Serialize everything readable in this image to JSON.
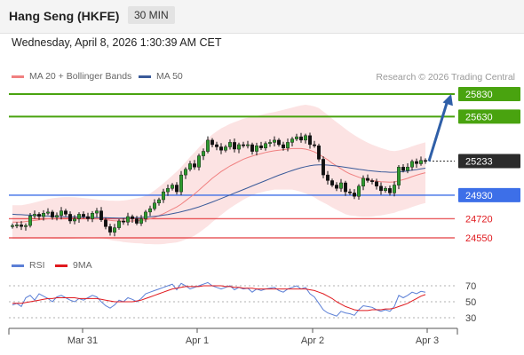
{
  "header": {
    "title": "Hang Seng (HKFE)",
    "timeframe": "30 MIN"
  },
  "datetime": "Wednesday, April 8, 2026 1:30:39 AM CET",
  "legend_main": [
    {
      "label": "MA 20 + Bollinger Bands",
      "color": "#f08080"
    },
    {
      "label": "MA 50",
      "color": "#3a5a99"
    }
  ],
  "credit": "Research © 2026 Trading Central",
  "legend_rsi": [
    {
      "label": "RSI",
      "color": "#5b7fd6"
    },
    {
      "label": "9MA",
      "color": "#e0191e"
    }
  ],
  "chart_data": {
    "type": "candlestick",
    "x_labels": [
      "Mar 31",
      "Apr 1",
      "Apr 2",
      "Apr 3"
    ],
    "price_levels": [
      {
        "label": "25830",
        "value": 25830,
        "kind": "resistance",
        "color": "#49a30f"
      },
      {
        "label": "25630",
        "value": 25630,
        "kind": "resistance",
        "color": "#49a30f"
      },
      {
        "label": "25233",
        "value": 25233,
        "kind": "last",
        "color": "#333333"
      },
      {
        "label": "24930",
        "value": 24930,
        "kind": "pivot",
        "color": "#3d6fe8"
      },
      {
        "label": "24720",
        "value": 24720,
        "kind": "support",
        "color": "#e0191e"
      },
      {
        "label": "24550",
        "value": 24550,
        "kind": "support",
        "color": "#e0191e"
      }
    ],
    "projection": {
      "from": 25233,
      "to": 25830
    },
    "rsi_levels": [
      70,
      50,
      30
    ],
    "closes": [
      24660,
      24665,
      24650,
      24660,
      24745,
      24760,
      24740,
      24770,
      24780,
      24735,
      24750,
      24790,
      24760,
      24700,
      24720,
      24760,
      24740,
      24720,
      24770,
      24790,
      24710,
      24650,
      24600,
      24640,
      24700,
      24690,
      24740,
      24720,
      24680,
      24720,
      24780,
      24810,
      24860,
      24890,
      24960,
      24990,
      25020,
      24960,
      25110,
      25160,
      25210,
      25180,
      25280,
      25320,
      25420,
      25380,
      25360,
      25330,
      25360,
      25400,
      25340,
      25380,
      25370,
      25380,
      25320,
      25370,
      25350,
      25390,
      25400,
      25420,
      25380,
      25350,
      25400,
      25430,
      25450,
      25420,
      25460,
      25380,
      25370,
      25250,
      25110,
      25060,
      25020,
      24990,
      25040,
      24960,
      24950,
      24920,
      25010,
      25080,
      25060,
      25050,
      25010,
      24970,
      24990,
      24950,
      25020,
      25180,
      25150,
      25180,
      25230,
      25210,
      25240,
      25233
    ],
    "ma20": [
      24690,
      24690,
      24690,
      24695,
      24700,
      24705,
      24710,
      24715,
      24720,
      24722,
      24724,
      24726,
      24728,
      24728,
      24728,
      24728,
      24727,
      24726,
      24725,
      24722,
      24718,
      24712,
      24706,
      24702,
      24700,
      24698,
      24698,
      24700,
      24702,
      24705,
      24710,
      24720,
      24732,
      24748,
      24765,
      24785,
      24805,
      24825,
      24850,
      24880,
      24910,
      24940,
      24975,
      25010,
      25045,
      25080,
      25110,
      25140,
      25165,
      25190,
      25210,
      25230,
      25250,
      25265,
      25278,
      25290,
      25300,
      25310,
      25318,
      25325,
      25330,
      25335,
      25340,
      25345,
      25345,
      25345,
      25340,
      25330,
      25315,
      25295,
      25270,
      25245,
      25215,
      25190,
      25165,
      25140,
      25120,
      25105,
      25090,
      25078,
      25068,
      25060,
      25055,
      25050,
      25048,
      25046,
      25048,
      25058,
      25068,
      25080,
      25095,
      25108,
      25120,
      25130
    ],
    "ma50": [
      24760,
      24758,
      24756,
      24754,
      24752,
      24750,
      24748,
      24746,
      24744,
      24742,
      24740,
      24739,
      24738,
      24737,
      24736,
      24735,
      24734,
      24733,
      24732,
      24731,
      24730,
      24729,
      24728,
      24727,
      24726,
      24726,
      24727,
      24728,
      24730,
      24732,
      24735,
      24738,
      24742,
      24746,
      24752,
      24758,
      24765,
      24773,
      24782,
      24792,
      24802,
      24814,
      24826,
      24840,
      24854,
      24869,
      24884,
      24900,
      24916,
      24932,
      24948,
      24964,
      24980,
      24996,
      25012,
      25028,
      25044,
      25060,
      25076,
      25092,
      25108,
      25122,
      25136,
      25150,
      25162,
      25174,
      25184,
      25192,
      25198,
      25200,
      25200,
      25198,
      25194,
      25190,
      25184,
      25178,
      25172,
      25166,
      25160,
      25155,
      25150,
      25146,
      25142,
      25138,
      25136,
      25134,
      25134,
      25136,
      25140,
      25146,
      25152,
      25158,
      25164,
      25170
    ],
    "bb_width": [
      150,
      150,
      150,
      152,
      155,
      160,
      165,
      170,
      175,
      180,
      182,
      185,
      185,
      185,
      183,
      180,
      178,
      175,
      172,
      170,
      170,
      172,
      175,
      178,
      180,
      185,
      190,
      195,
      200,
      205,
      215,
      225,
      240,
      255,
      270,
      285,
      300,
      315,
      330,
      345,
      360,
      370,
      380,
      385,
      390,
      390,
      388,
      385,
      380,
      375,
      370,
      365,
      360,
      355,
      350,
      345,
      345,
      345,
      345,
      345,
      350,
      355,
      360,
      365,
      375,
      385,
      395,
      400,
      405,
      410,
      405,
      400,
      395,
      390,
      385,
      380,
      370,
      360,
      350,
      340,
      330,
      320,
      310,
      300,
      290,
      280,
      275,
      270,
      270,
      270,
      270,
      270,
      270,
      270
    ],
    "rsi": [
      46,
      48,
      44,
      55,
      58,
      52,
      60,
      57,
      54,
      50,
      56,
      58,
      55,
      52,
      50,
      54,
      52,
      55,
      58,
      56,
      50,
      45,
      42,
      46,
      52,
      50,
      55,
      53,
      50,
      54,
      60,
      62,
      64,
      66,
      68,
      70,
      72,
      65,
      73,
      70,
      66,
      68,
      70,
      72,
      74,
      70,
      68,
      66,
      68,
      70,
      65,
      68,
      66,
      67,
      62,
      66,
      64,
      66,
      67,
      68,
      64,
      62,
      66,
      68,
      70,
      66,
      68,
      60,
      56,
      48,
      40,
      36,
      34,
      32,
      38,
      36,
      35,
      33,
      40,
      45,
      44,
      43,
      40,
      38,
      40,
      38,
      44,
      58,
      55,
      58,
      62,
      60,
      63,
      62
    ],
    "rsi_ma": [
      48,
      48,
      48,
      49,
      50,
      51,
      52,
      53,
      54,
      54,
      55,
      55,
      55,
      55,
      55,
      54,
      54,
      54,
      54,
      54,
      53,
      52,
      51,
      50,
      50,
      50,
      50,
      50,
      51,
      52,
      54,
      56,
      58,
      60,
      62,
      64,
      66,
      67,
      68,
      69,
      69,
      69,
      69,
      70,
      70,
      70,
      70,
      70,
      69,
      69,
      68,
      68,
      67,
      67,
      67,
      66,
      66,
      66,
      66,
      66,
      66,
      66,
      66,
      66,
      66,
      66,
      66,
      65,
      64,
      62,
      60,
      57,
      54,
      50,
      47,
      44,
      42,
      40,
      39,
      39,
      39,
      40,
      40,
      40,
      41,
      41,
      42,
      44,
      46,
      48,
      51,
      54,
      57,
      59
    ]
  }
}
